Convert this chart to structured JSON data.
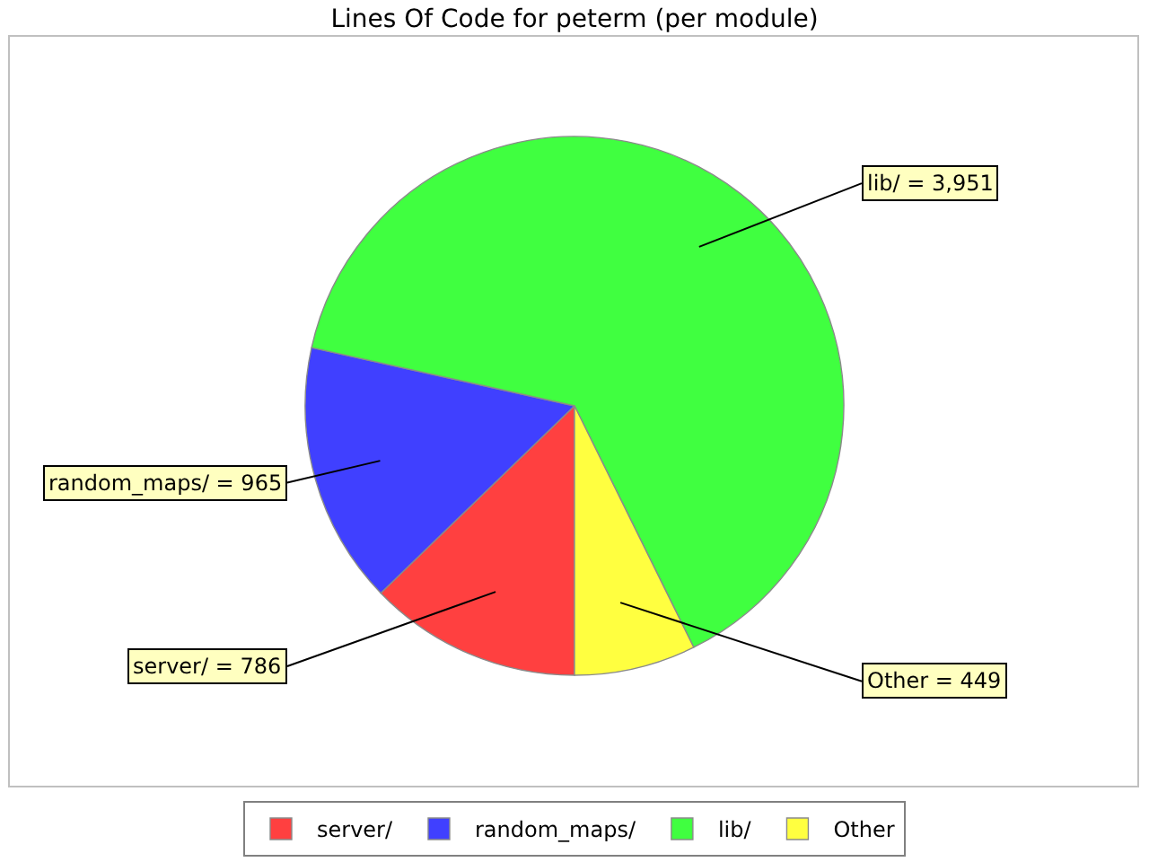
{
  "chart_data": {
    "type": "pie",
    "title": "Lines Of Code for peterm (per module)",
    "categories": [
      "server/",
      "random_maps/",
      "lib/",
      "Other"
    ],
    "values": [
      786,
      965,
      3951,
      449
    ],
    "colors": [
      "#ff4040",
      "#4040ff",
      "#40ff40",
      "#ffff40"
    ],
    "value_labels": [
      "server/ = 786",
      "random_maps/ = 965",
      "lib/ = 3,951",
      "Other = 449"
    ],
    "legend": "bottom"
  }
}
